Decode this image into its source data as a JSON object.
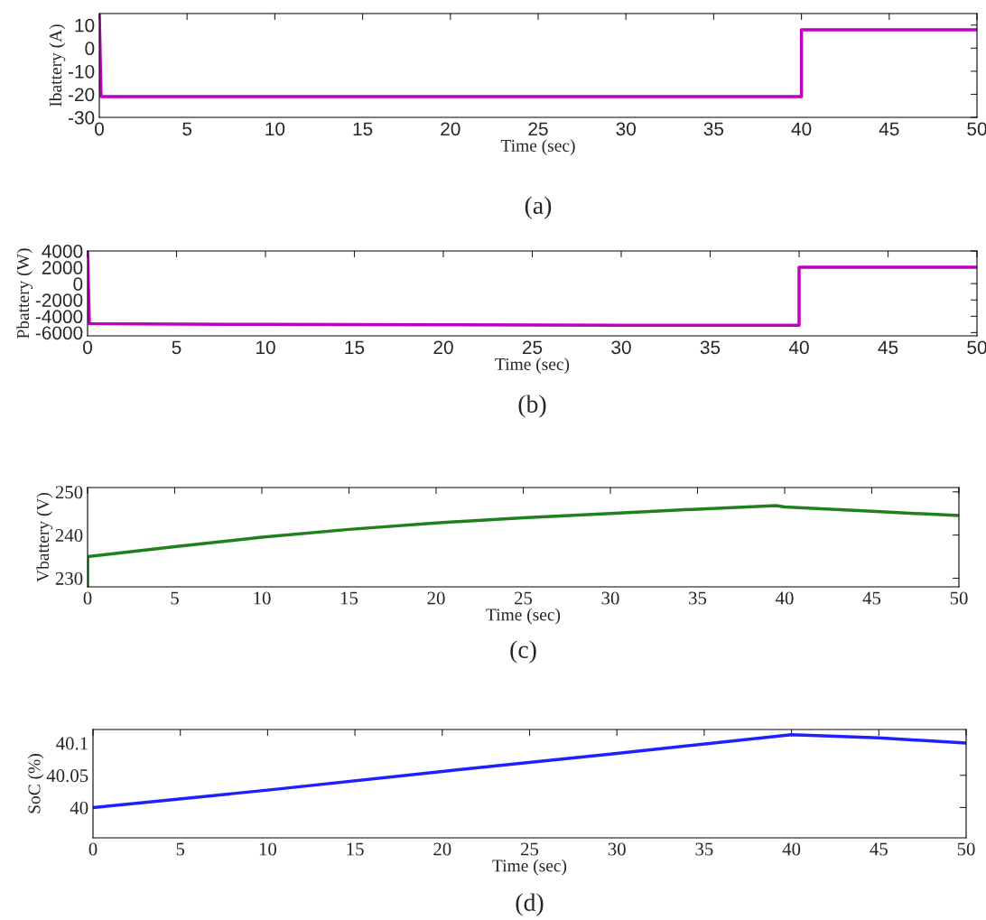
{
  "chart_data": [
    {
      "type": "line",
      "xlabel": "Time (sec)",
      "ylabel": "Ibattery (A)",
      "annotations": [
        "(a)"
      ],
      "xlim": [
        0,
        50
      ],
      "xticks": [
        0,
        5,
        10,
        15,
        20,
        25,
        30,
        35,
        40,
        45,
        50
      ],
      "ylim": [
        -30,
        15
      ],
      "yticks": [
        -30,
        -20,
        -10,
        0,
        10
      ],
      "grid": false,
      "legend": false,
      "series": [
        {
          "color": "#c000c0",
          "x": [
            0,
            0.1,
            20,
            40,
            40,
            50
          ],
          "values": [
            15,
            -21,
            -21,
            -21,
            8,
            8
          ]
        }
      ]
    },
    {
      "type": "line",
      "xlabel": "Time (sec)",
      "ylabel": "Pbattery (W)",
      "annotations": [
        "(b)"
      ],
      "xlim": [
        0,
        50
      ],
      "xticks": [
        0,
        5,
        10,
        15,
        20,
        25,
        30,
        35,
        40,
        45,
        50
      ],
      "ylim": [
        -6400,
        4000
      ],
      "yticks": [
        -6000,
        -4000,
        -2000,
        0,
        2000,
        4000
      ],
      "grid": false,
      "legend": false,
      "series": [
        {
          "color": "#c000c0",
          "x": [
            0,
            0.1,
            10,
            20,
            30,
            40,
            40,
            50
          ],
          "values": [
            4000,
            -4900,
            -5000,
            -5050,
            -5100,
            -5100,
            2000,
            2000
          ]
        }
      ]
    },
    {
      "type": "line",
      "xlabel": "Time (sec)",
      "ylabel": "Vbattery (V)",
      "annotations": [
        "(c)"
      ],
      "xlim": [
        0,
        50
      ],
      "xticks": [
        0,
        5,
        10,
        15,
        20,
        25,
        30,
        35,
        40,
        45,
        50
      ],
      "ylim": [
        228,
        251
      ],
      "yticks": [
        230,
        240,
        250
      ],
      "grid": false,
      "legend": false,
      "series": [
        {
          "color": "#208020",
          "x": [
            0,
            0,
            5,
            10,
            15,
            20,
            25,
            30,
            35,
            39.5,
            40,
            45,
            50
          ],
          "values": [
            228,
            235,
            237.3,
            239.5,
            241.3,
            242.8,
            244,
            245,
            246,
            246.8,
            246.5,
            245.5,
            244.5
          ]
        }
      ]
    },
    {
      "type": "line",
      "xlabel": "Time (sec)",
      "ylabel": "SoC (%)",
      "annotations": [
        "(d)"
      ],
      "xlim": [
        0,
        50
      ],
      "xticks": [
        0,
        5,
        10,
        15,
        20,
        25,
        30,
        35,
        40,
        45,
        50
      ],
      "ylim": [
        39.953,
        40.121
      ],
      "yticks": [
        40,
        40.05,
        40.1
      ],
      "grid": false,
      "legend": false,
      "series": [
        {
          "color": "#2020ff",
          "x": [
            0,
            10,
            20,
            30,
            40,
            45,
            50
          ],
          "values": [
            40,
            40.027,
            40.056,
            40.084,
            40.113,
            40.108,
            40.1
          ]
        }
      ]
    }
  ]
}
